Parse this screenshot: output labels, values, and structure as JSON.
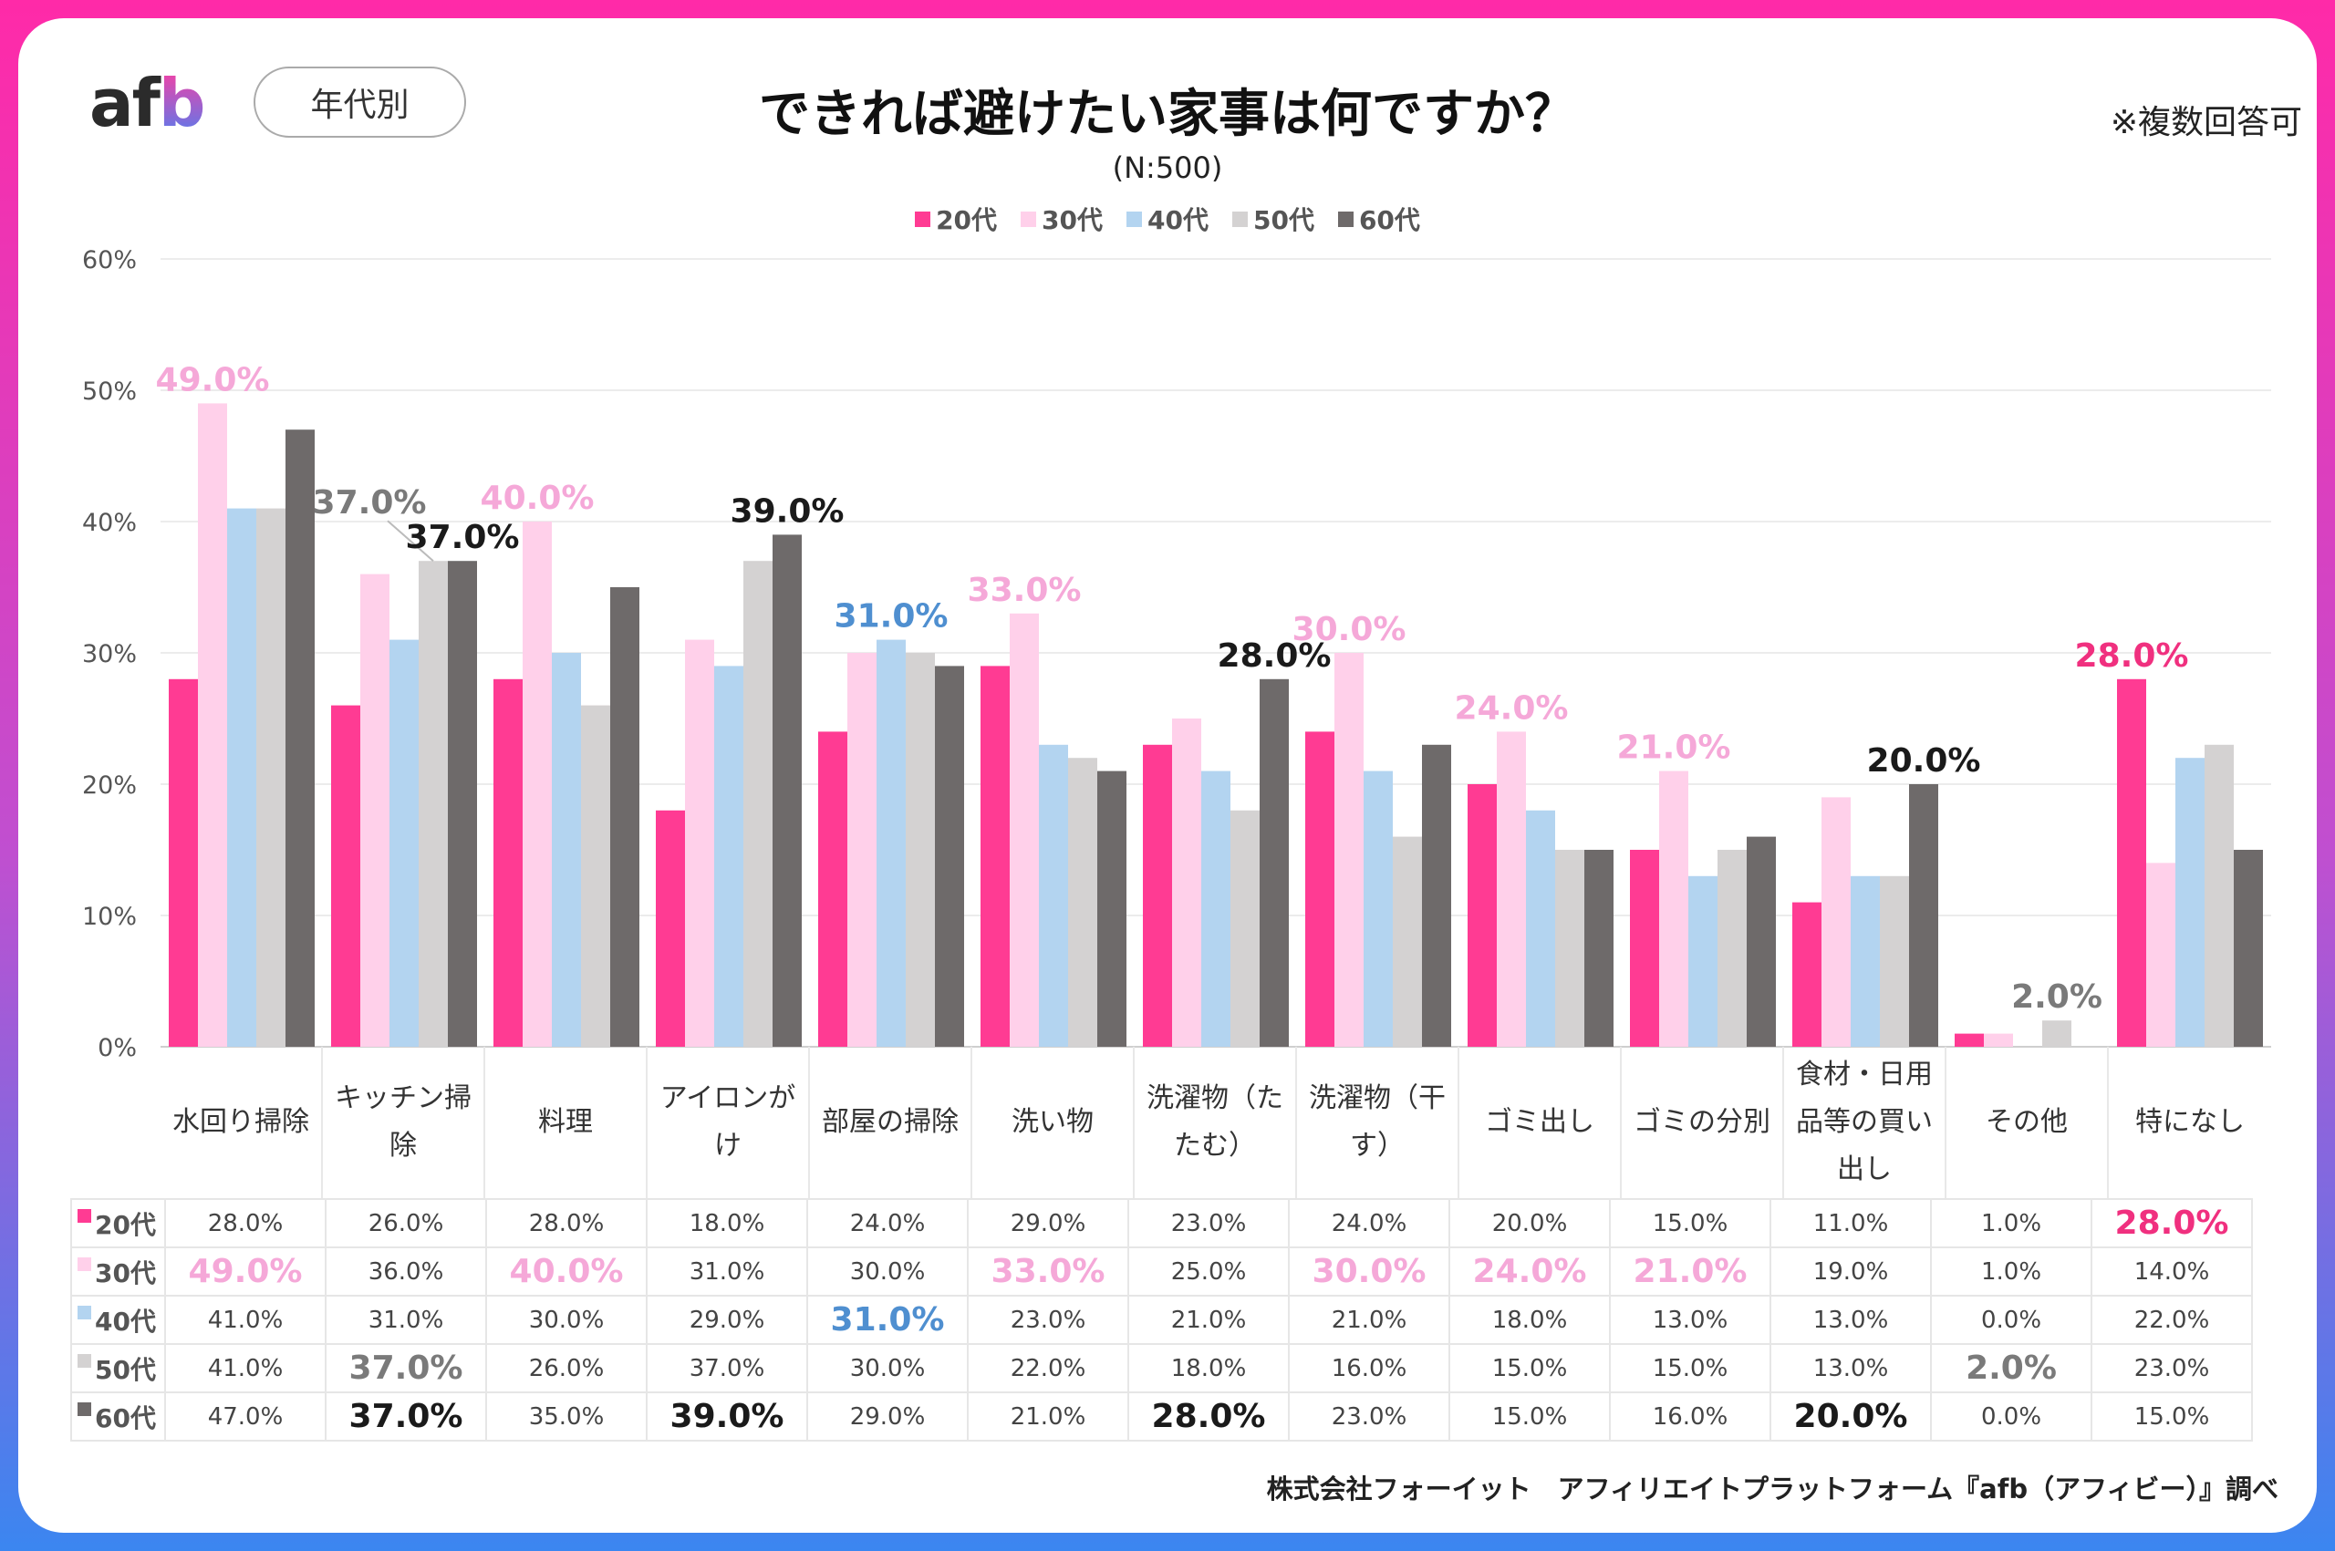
{
  "header": {
    "logo": "afb",
    "segment_label": "年代別",
    "title": "できれば避けたい家事は何ですか？",
    "subtitle": "(N:500)",
    "note": "※複数回答可"
  },
  "footer": "株式会社フォーイット　アフィリエイトプラットフォーム『afb（アフィビー）』調べ",
  "chart_data": {
    "type": "bar",
    "title": "できれば避けたい家事は何ですか？",
    "legend_position": "top",
    "grid": true,
    "ylim": [
      0,
      60
    ],
    "yticks": [
      "0%",
      "10%",
      "20%",
      "30%",
      "40%",
      "50%",
      "60%"
    ],
    "categories": [
      "水回り掃除",
      "キッチン掃除",
      "料理",
      "アイロンがけ",
      "部屋の掃除",
      "洗い物",
      "洗濯物（たたむ）",
      "洗濯物（干す）",
      "ゴミ出し",
      "ゴミの分別",
      "食材・日用品等の買い出し",
      "その他",
      "特になし"
    ],
    "series": [
      {
        "name": "20代",
        "color": "#ff3b93",
        "values": [
          28,
          26,
          28,
          18,
          24,
          29,
          23,
          24,
          20,
          15,
          11,
          1,
          28
        ]
      },
      {
        "name": "30代",
        "color": "#ffd0ea",
        "values": [
          49,
          36,
          40,
          31,
          30,
          33,
          25,
          30,
          24,
          21,
          19,
          1,
          14
        ]
      },
      {
        "name": "40代",
        "color": "#b3d4f0",
        "values": [
          41,
          31,
          30,
          29,
          31,
          23,
          21,
          21,
          18,
          13,
          13,
          0,
          22
        ]
      },
      {
        "name": "50代",
        "color": "#d4d2d2",
        "values": [
          41,
          37,
          26,
          37,
          30,
          22,
          18,
          16,
          15,
          15,
          13,
          2,
          23
        ]
      },
      {
        "name": "60代",
        "color": "#6e6a6a",
        "values": [
          47,
          37,
          35,
          39,
          29,
          21,
          28,
          23,
          15,
          16,
          20,
          0,
          15
        ]
      }
    ],
    "highlight_label_colors": [
      "#f0307f",
      "#f5a8d8",
      "#4f8fd0",
      "#7a7a7a",
      "#1a1a1a"
    ],
    "highlights": [
      [
        0,
        1
      ],
      [
        1,
        3
      ],
      [
        1,
        4
      ],
      [
        2,
        1
      ],
      [
        3,
        4
      ],
      [
        4,
        2
      ],
      [
        5,
        1
      ],
      [
        6,
        4
      ],
      [
        7,
        1
      ],
      [
        8,
        1
      ],
      [
        9,
        1
      ],
      [
        10,
        4
      ],
      [
        11,
        3
      ],
      [
        12,
        0
      ]
    ]
  }
}
